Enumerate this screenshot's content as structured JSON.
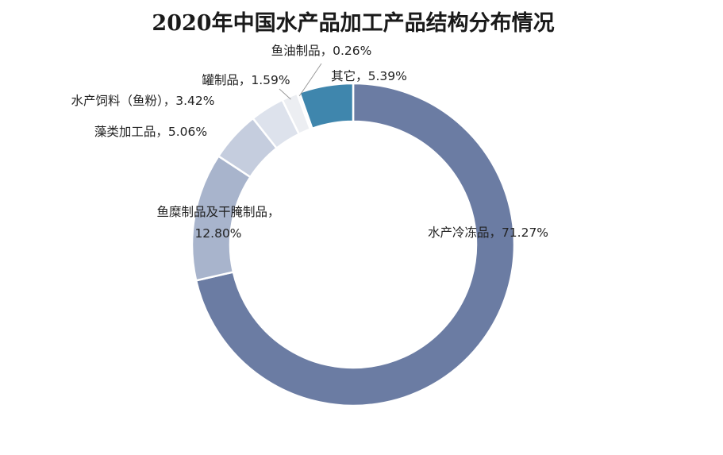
{
  "chart_data": {
    "type": "pie",
    "title": "2020年中国水产品加工产品结构分布情况",
    "slices": [
      {
        "name": "水产冷冻品",
        "value": 71.27,
        "value_label": "71.27%",
        "color": "#6b7ca3"
      },
      {
        "name": "鱼糜制品及干腌制品",
        "value": 12.8,
        "value_label": "12.80%",
        "color": "#a8b4cc"
      },
      {
        "name": "藻类加工品",
        "value": 5.06,
        "value_label": "5.06%",
        "color": "#c5cdde"
      },
      {
        "name": "水产饲料（鱼粉）",
        "value": 3.42,
        "value_label": "3.42%",
        "color": "#dde2ec"
      },
      {
        "name": "罐制品",
        "value": 1.59,
        "value_label": "1.59%",
        "color": "#eceef2"
      },
      {
        "name": "鱼油制品",
        "value": 0.26,
        "value_label": "0.26%",
        "color": "#f5f6f8"
      },
      {
        "name": "其它",
        "value": 5.39,
        "value_label": "5.39%",
        "color": "#3f86ad"
      }
    ],
    "legend": "none",
    "style": "donut"
  }
}
